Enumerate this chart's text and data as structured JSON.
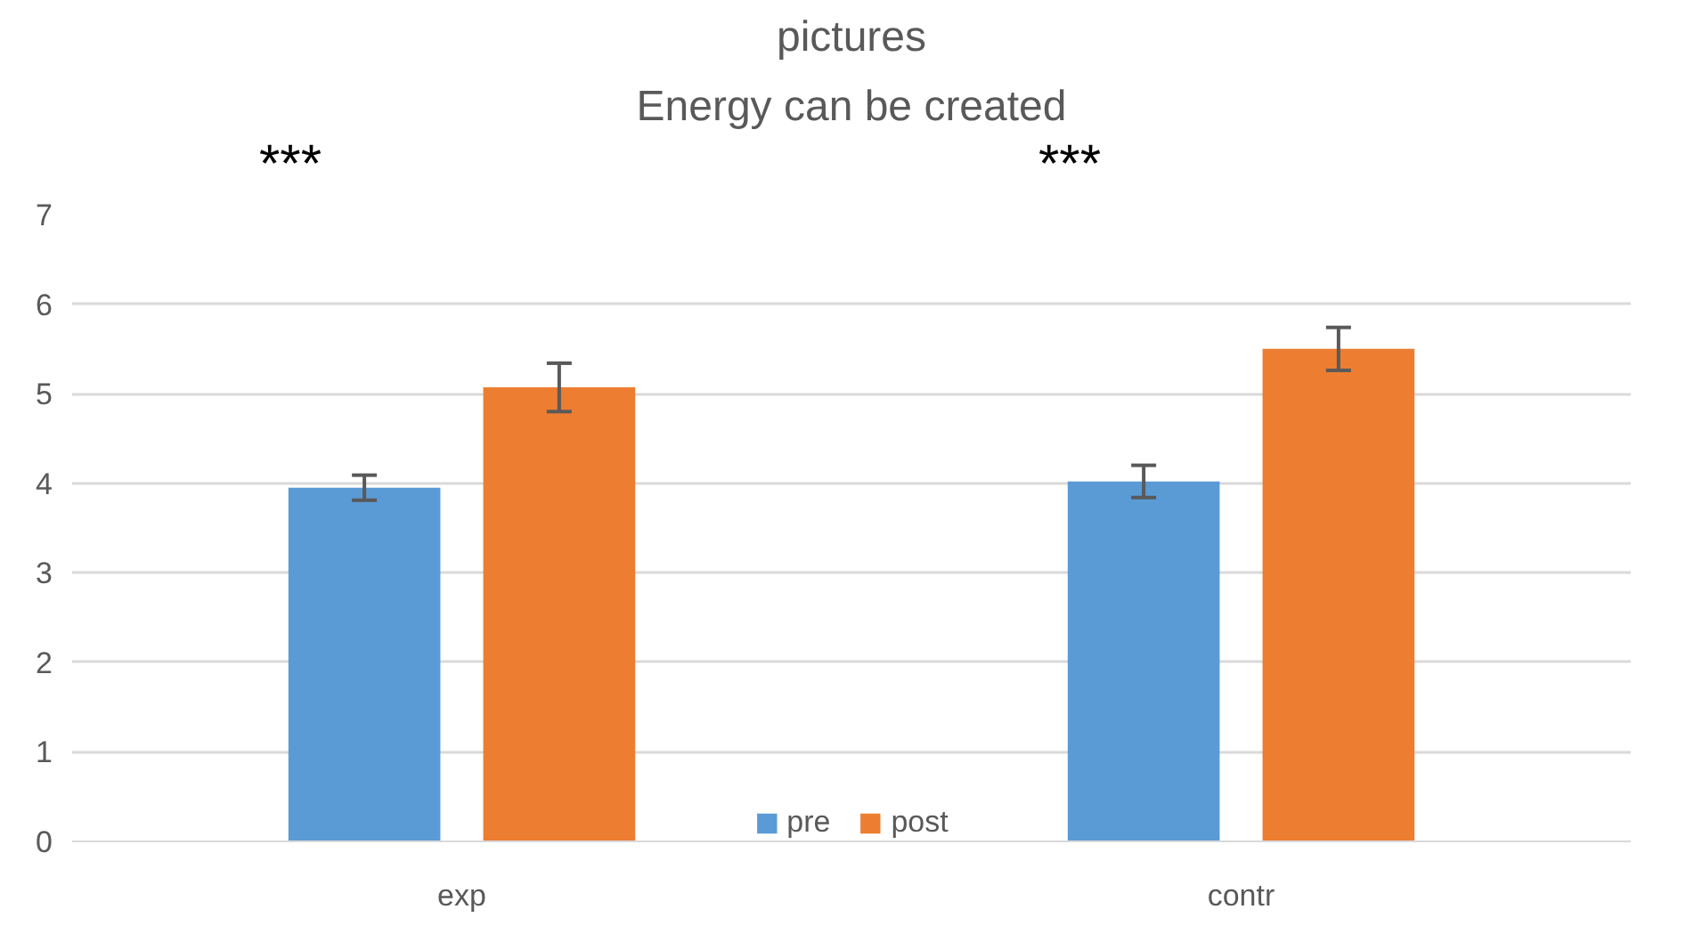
{
  "chart_data": {
    "type": "bar",
    "title": "pictures",
    "subtitle": "Energy can be created",
    "categories": [
      "exp",
      "contr"
    ],
    "series": [
      {
        "name": "pre",
        "color": "#5b9bd5",
        "values": [
          3.95,
          4.02
        ],
        "errors": [
          0.14,
          0.18
        ]
      },
      {
        "name": "post",
        "color": "#ed7d31",
        "values": [
          5.07,
          5.5
        ],
        "errors": [
          0.27,
          0.24
        ]
      }
    ],
    "annotations": [
      "***",
      "***"
    ],
    "ylim": [
      0,
      7
    ],
    "yticks": [
      0,
      1,
      2,
      3,
      4,
      5,
      6,
      7
    ],
    "grid": "y",
    "legend": "bottom"
  }
}
